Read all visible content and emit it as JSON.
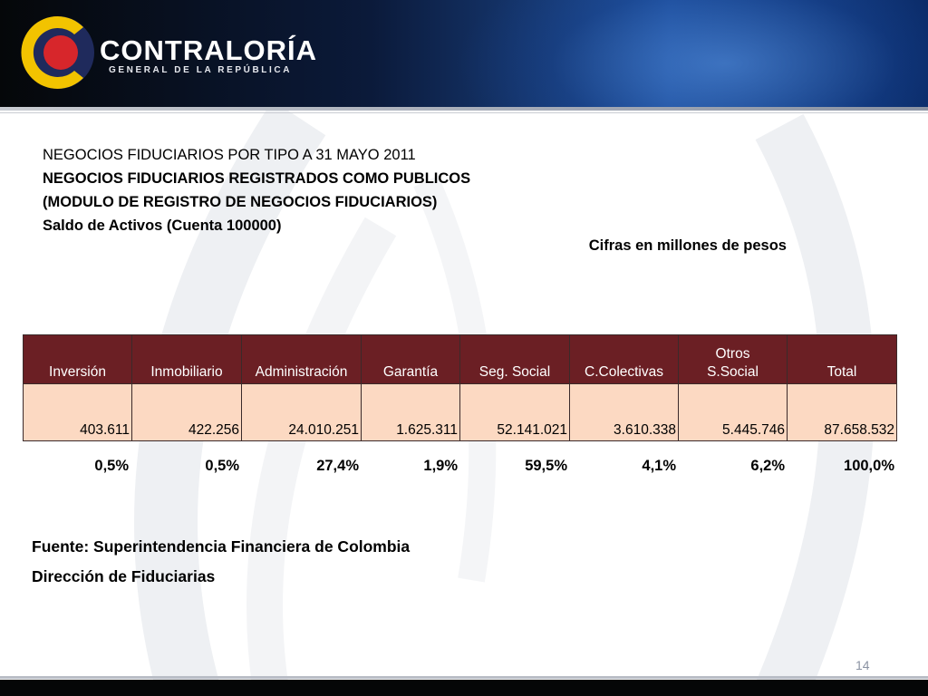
{
  "header": {
    "brand_name": "CONTRALORÍA",
    "brand_sub": "GENERAL DE LA REPÚBLICA"
  },
  "titles": {
    "line1": "NEGOCIOS FIDUCIARIOS POR TIPO A 31 MAYO 2011",
    "line2": "NEGOCIOS FIDUCIARIOS REGISTRADOS COMO PUBLICOS",
    "line3": "(MODULO DE REGISTRO DE NEGOCIOS FIDUCIARIOS)",
    "line4": "Saldo de Activos (Cuenta 100000)",
    "units": "Cifras en millones de pesos"
  },
  "table": {
    "headers": [
      {
        "line1": "",
        "line2": "Inversión"
      },
      {
        "line1": "",
        "line2": "Inmobiliario"
      },
      {
        "line1": "",
        "line2": "Administración"
      },
      {
        "line1": "",
        "line2": "Garantía"
      },
      {
        "line1": "",
        "line2": "Seg. Social"
      },
      {
        "line1": "",
        "line2": "C.Colectivas"
      },
      {
        "line1": "Otros",
        "line2": "S.Social"
      },
      {
        "line1": "",
        "line2": "Total"
      }
    ],
    "values": [
      "403.611",
      "422.256",
      "24.010.251",
      "1.625.311",
      "52.141.021",
      "3.610.338",
      "5.445.746",
      "87.658.532"
    ],
    "percents": [
      "0,5%",
      "0,5%",
      "27,4%",
      "1,9%",
      "59,5%",
      "4,1%",
      "6,2%",
      "100,0%"
    ]
  },
  "source": {
    "line1": "Fuente: Superintendencia Financiera de Colombia",
    "line2": "Dirección de Fiduciarias"
  },
  "slide_number": "14",
  "colors": {
    "header_fill": "#6b1f24",
    "value_fill": "#fcd9c2",
    "logo_yellow": "#f2c300",
    "logo_red": "#d7262b",
    "logo_navy": "#1f2a5c"
  }
}
